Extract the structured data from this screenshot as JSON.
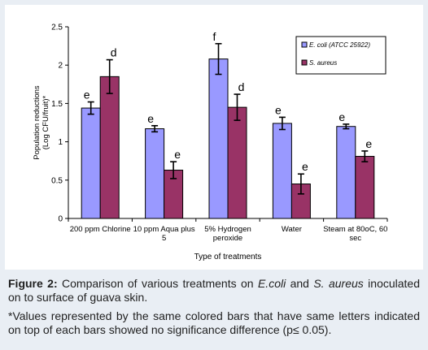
{
  "chart_data": {
    "type": "bar",
    "categories": [
      [
        "200 ppm Chlorine"
      ],
      [
        "10 ppm Aqua plus",
        "5"
      ],
      [
        "5% Hydrogen",
        "peroxide"
      ],
      [
        "Water"
      ],
      [
        "Steam at 80oC, 60",
        "sec"
      ]
    ],
    "series": [
      {
        "name": "E. coli (ATCC 25922)",
        "values": [
          1.44,
          1.17,
          2.08,
          1.24,
          1.2
        ],
        "errors": [
          0.08,
          0.04,
          0.2,
          0.08,
          0.03
        ],
        "letters": [
          "e",
          "e",
          "f",
          "e",
          "e"
        ],
        "color": "#9999ff"
      },
      {
        "name": "S. aureus",
        "values": [
          1.85,
          0.63,
          1.45,
          0.45,
          0.81
        ],
        "errors": [
          0.22,
          0.11,
          0.17,
          0.13,
          0.07
        ],
        "letters": [
          "d",
          "e",
          "d",
          "e",
          "e"
        ],
        "color": "#993366"
      }
    ],
    "xlabel": "Type of treatments",
    "ylabel_lines": [
      "Population reductions",
      "(Log CFU/fruit)*"
    ],
    "ylim": [
      0,
      2.5
    ],
    "yticks": [
      "0",
      "0.5",
      "1",
      "1.5",
      "2",
      "2.5"
    ],
    "legend_position": "top-right",
    "grid": false
  },
  "caption": {
    "label": "Figure 2:",
    "text_before_ecoli": "Comparison of various treatments on ",
    "ecoli": "E.coli",
    "text_and": " and ",
    "saureus": "S. aureus",
    "text_after": " inoculated on to surface of guava skin.",
    "footnote": "*Values represented by the same colored bars that have same letters indicated on top of each bars showed no significance difference (p≤ 0.05)."
  }
}
